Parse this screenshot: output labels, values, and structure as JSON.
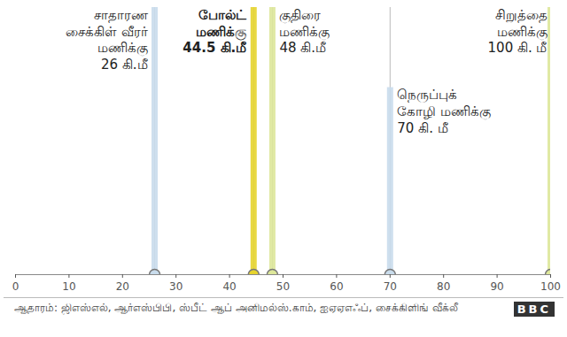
{
  "chart_data": {
    "type": "rule",
    "categories": [
      "சாதாரண\nசைக்கிள் வீரர்\nமணிக்கு",
      "போல்ட்\nமணிக்கு",
      "குதிரை\nமணிக்கு",
      "நெருப்புக்\nகோழி மணிக்கு",
      "சிறுத்தை\nமணிக்கு"
    ],
    "values": [
      26,
      44.5,
      48,
      70,
      100
    ],
    "value_labels": [
      "26 கி.மீ",
      "44.5 கி.மீ",
      "48 கி.மீ",
      "70 கி. மீ",
      "100 கி. மீ"
    ],
    "data_labels": true,
    "colors": [
      "#c9dcec",
      "#e6d42e",
      "#dde79a",
      "#c9dcec",
      "#dde79a"
    ],
    "xlim": [
      0,
      100
    ],
    "xticks": [
      0,
      10,
      20,
      30,
      40,
      50,
      60,
      70,
      80,
      90,
      100
    ],
    "tick_labels": "x",
    "grid": false,
    "caption": "ஆதாரம்: ஜிஎஸ்எல், ஆர்எஸ்பிபி, ஸ்பீட் ஆப் அனிமல்ஸ்.காம், ஐஏஏஎஃப், சைக்கிளிங் வீக்லீ",
    "credit": "BBC"
  }
}
